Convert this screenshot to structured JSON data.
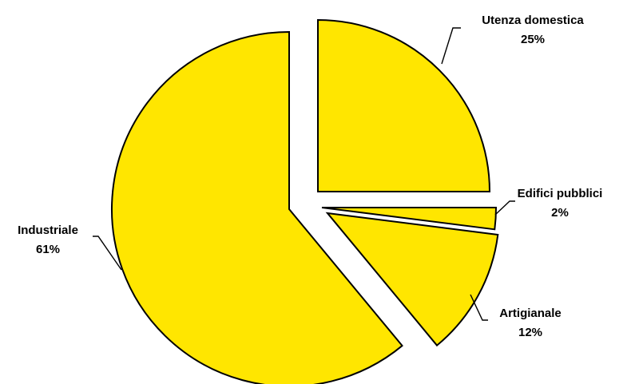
{
  "chart_data": {
    "type": "pie",
    "title": "",
    "slice_color": "#FFE600",
    "border_color": "#000000",
    "exploded": true,
    "legend": "none",
    "slices": [
      {
        "label": "Utenza domestica",
        "value": 25,
        "value_label": "25%"
      },
      {
        "label": "Edifici pubblici",
        "value": 2,
        "value_label": "2%"
      },
      {
        "label": "Artigianale",
        "value": 12,
        "value_label": "12%"
      },
      {
        "label": "Industriale",
        "value": 61,
        "value_label": "61%"
      }
    ]
  }
}
